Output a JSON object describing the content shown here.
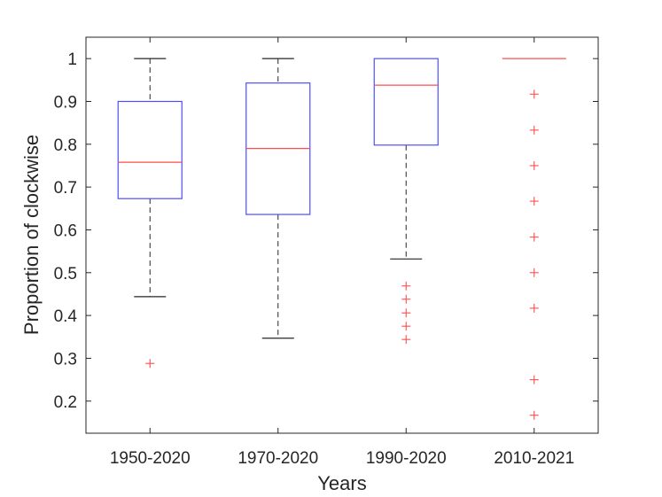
{
  "chart_data": {
    "type": "box",
    "xlabel": "Years",
    "ylabel": "Proportion of clockwise",
    "ylim": [
      0.125,
      1.05
    ],
    "yticks": [
      "0.2",
      "0.3",
      "0.4",
      "0.5",
      "0.6",
      "0.7",
      "0.8",
      "0.9",
      "1"
    ],
    "categories": [
      "1950-2020",
      "1970-2020",
      "1990-2020",
      "2010-2021"
    ],
    "boxes": [
      {
        "whisker_low": 0.444,
        "q1": 0.673,
        "median": 0.758,
        "q3": 0.9,
        "whisker_high": 1.0,
        "outliers": [
          0.288
        ]
      },
      {
        "whisker_low": 0.347,
        "q1": 0.636,
        "median": 0.79,
        "q3": 0.943,
        "whisker_high": 1.0,
        "outliers": []
      },
      {
        "whisker_low": 0.532,
        "q1": 0.798,
        "median": 0.938,
        "q3": 1.0,
        "whisker_high": 1.0,
        "outliers": [
          0.469,
          0.438,
          0.406,
          0.375,
          0.344
        ]
      },
      {
        "whisker_low": 1.0,
        "q1": 1.0,
        "median": 1.0,
        "q3": 1.0,
        "whisker_high": 1.0,
        "outliers": [
          0.917,
          0.833,
          0.75,
          0.667,
          0.583,
          0.5,
          0.417,
          0.25,
          0.167
        ]
      }
    ],
    "colors": {
      "box": "#4d4dff",
      "median": "#ff4d4d",
      "whisker": "#262626",
      "outlier": "#ff4d4d",
      "axis": "#262626"
    }
  }
}
